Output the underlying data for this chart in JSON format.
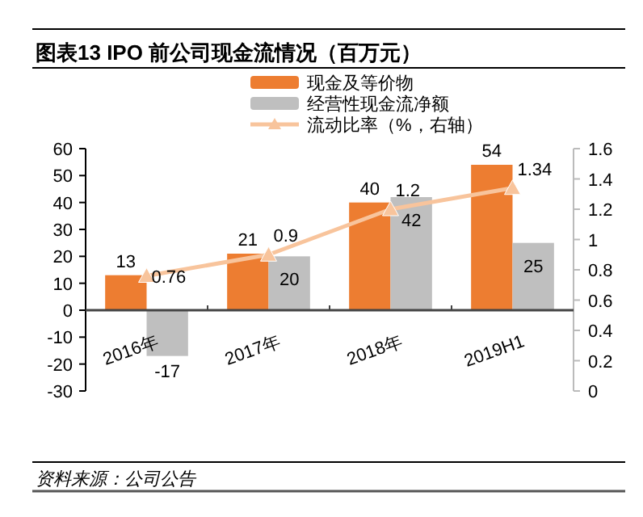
{
  "chart_data": {
    "type": "bar",
    "title": "图表13    IPO 前公司现金流情况（百万元）",
    "annotations": [
      "资料来源：公司公告"
    ],
    "categories": [
      "2016年",
      "2017年",
      "2018年",
      "2019H1"
    ],
    "series": [
      {
        "name": "现金及等价物",
        "color": "#ed7d31",
        "values": [
          13,
          21,
          40,
          54
        ]
      },
      {
        "name": "经营性现金流净额",
        "color": "#bfbfbf",
        "values": [
          -17,
          20,
          42,
          25
        ]
      },
      {
        "name": "流动比率（%，右轴）",
        "type": "line",
        "axis": "y2",
        "color": "#f8c49c",
        "marker": "triangle",
        "values": [
          0.76,
          0.9,
          1.2,
          1.34
        ]
      }
    ],
    "ylim": [
      -30,
      60
    ],
    "yticks": [
      -30,
      -20,
      -10,
      0,
      10,
      20,
      30,
      40,
      50,
      60
    ],
    "y2lim": [
      0,
      1.6
    ],
    "y2ticks": [
      0,
      0.2,
      0.4,
      0.6,
      0.8,
      1,
      1.2,
      1.4,
      1.6
    ],
    "data_labels": true,
    "legend": "top",
    "grid": false
  }
}
